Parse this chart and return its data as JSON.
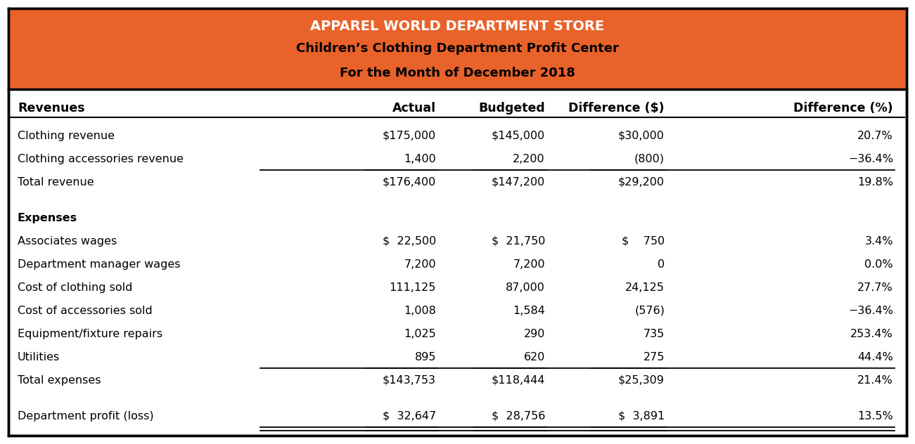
{
  "title_line1": "APPAREL WORLD DEPARTMENT STORE",
  "title_line2": "Children’s Clothing Department Profit Center",
  "title_line3": "For the Month of December 2018",
  "header_bg": "#E8622A",
  "title_line1_color": "#FFFFFF",
  "title_line23_color": "#000000",
  "border_color": "#000000",
  "text_color": "#000000",
  "bg_color": "#FFFFFF",
  "col_headers": [
    "Revenues",
    "Actual",
    "Budgeted",
    "Difference ($)",
    "Difference (%)"
  ],
  "rows": [
    {
      "label": "Clothing revenue",
      "actual": "$175,000",
      "budgeted": "$145,000",
      "diff_d": "$30,000",
      "diff_p": "20.7%",
      "bold": false,
      "ul_below": false,
      "dbl_ul": false,
      "blank": false
    },
    {
      "label": "Clothing accessories revenue",
      "actual": "1,400",
      "budgeted": "2,200",
      "diff_d": "(800)",
      "diff_p": "−36.4%",
      "bold": false,
      "ul_below": true,
      "dbl_ul": false,
      "blank": false
    },
    {
      "label": "Total revenue",
      "actual": "$176,400",
      "budgeted": "$147,200",
      "diff_d": "$29,200",
      "diff_p": "19.8%",
      "bold": false,
      "ul_below": false,
      "dbl_ul": false,
      "blank": false
    },
    {
      "label": "",
      "actual": "",
      "budgeted": "",
      "diff_d": "",
      "diff_p": "",
      "bold": false,
      "ul_below": false,
      "dbl_ul": false,
      "blank": true
    },
    {
      "label": "Expenses",
      "actual": "",
      "budgeted": "",
      "diff_d": "",
      "diff_p": "",
      "bold": true,
      "ul_below": false,
      "dbl_ul": false,
      "blank": false
    },
    {
      "label": "Associates wages",
      "actual": "$  22,500",
      "budgeted": "$  21,750",
      "diff_d": "$    750",
      "diff_p": "3.4%",
      "bold": false,
      "ul_below": false,
      "dbl_ul": false,
      "blank": false
    },
    {
      "label": "Department manager wages",
      "actual": "7,200",
      "budgeted": "7,200",
      "diff_d": "0",
      "diff_p": "0.0%",
      "bold": false,
      "ul_below": false,
      "dbl_ul": false,
      "blank": false
    },
    {
      "label": "Cost of clothing sold",
      "actual": "111,125",
      "budgeted": "87,000",
      "diff_d": "24,125",
      "diff_p": "27.7%",
      "bold": false,
      "ul_below": false,
      "dbl_ul": false,
      "blank": false
    },
    {
      "label": "Cost of accessories sold",
      "actual": "1,008",
      "budgeted": "1,584",
      "diff_d": "(576)",
      "diff_p": "−36.4%",
      "bold": false,
      "ul_below": false,
      "dbl_ul": false,
      "blank": false
    },
    {
      "label": "Equipment/fixture repairs",
      "actual": "1,025",
      "budgeted": "290",
      "diff_d": "735",
      "diff_p": "253.4%",
      "bold": false,
      "ul_below": false,
      "dbl_ul": false,
      "blank": false
    },
    {
      "label": "Utilities",
      "actual": "895",
      "budgeted": "620",
      "diff_d": "275",
      "diff_p": "44.4%",
      "bold": false,
      "ul_below": true,
      "dbl_ul": false,
      "blank": false
    },
    {
      "label": "Total expenses",
      "actual": "$143,753",
      "budgeted": "$118,444",
      "diff_d": "$25,309",
      "diff_p": "21.4%",
      "bold": false,
      "ul_below": false,
      "dbl_ul": false,
      "blank": false
    },
    {
      "label": "",
      "actual": "",
      "budgeted": "",
      "diff_d": "",
      "diff_p": "",
      "bold": false,
      "ul_below": false,
      "dbl_ul": false,
      "blank": true
    },
    {
      "label": "Department profit (loss)",
      "actual": "$  32,647",
      "budgeted": "$  28,756",
      "diff_d": "$  3,891",
      "diff_p": "13.5%",
      "bold": false,
      "ul_below": false,
      "dbl_ul": true,
      "blank": false
    }
  ],
  "font_size": 11.5,
  "header_font_size": 12.5,
  "title_font_size1": 14,
  "title_font_size23": 13
}
